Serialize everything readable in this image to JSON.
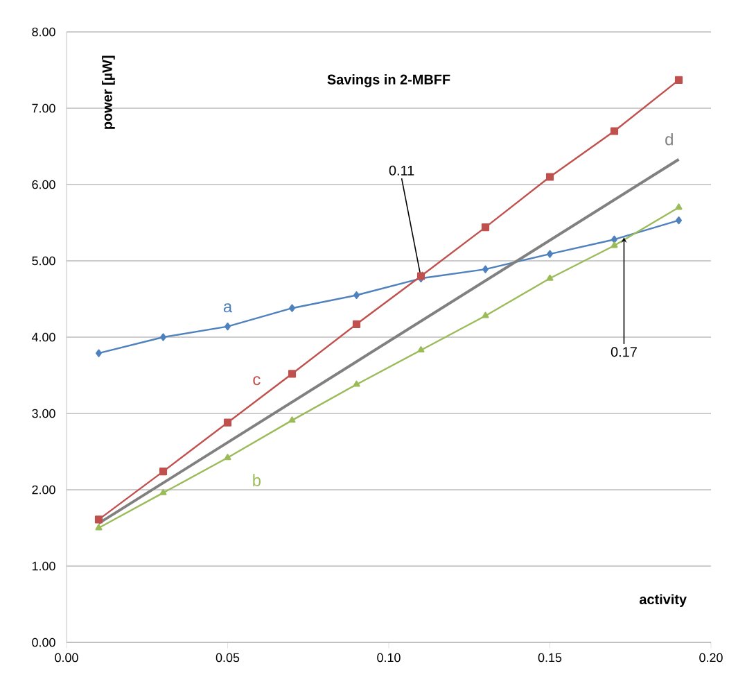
{
  "chart_data": {
    "type": "line",
    "title": "Savings in 2-MBFF",
    "xlabel": "activity",
    "ylabel": "power [µW]",
    "x": [
      0.01,
      0.03,
      0.05,
      0.07,
      0.09,
      0.11,
      0.13,
      0.15,
      0.17,
      0.19
    ],
    "series": [
      {
        "name": "a",
        "color": "#4f81bd",
        "marker": "diamond",
        "values": [
          3.79,
          4.0,
          4.14,
          4.38,
          4.55,
          4.77,
          4.89,
          5.09,
          5.28,
          5.53
        ]
      },
      {
        "name": "c",
        "color": "#c0504d",
        "marker": "square",
        "values": [
          1.61,
          2.24,
          2.88,
          3.52,
          4.17,
          4.8,
          5.44,
          6.1,
          6.7,
          7.37
        ]
      },
      {
        "name": "b",
        "color": "#9bbb59",
        "marker": "triangle",
        "values": [
          1.5,
          1.96,
          2.42,
          2.91,
          3.38,
          3.83,
          4.28,
          4.77,
          5.2,
          5.7
        ]
      },
      {
        "name": "d",
        "color": "#808080",
        "marker": "none",
        "x": [
          0.01,
          0.19
        ],
        "values": [
          1.56,
          6.33
        ]
      }
    ],
    "annotations": [
      {
        "text": "0.11",
        "x": 0.11,
        "y": 4.78
      },
      {
        "text": "0.17",
        "x": 0.173,
        "y": 5.31
      }
    ],
    "xlim": [
      0,
      0.2
    ],
    "ylim": [
      0,
      8
    ],
    "xticks": [
      {
        "value": 0,
        "label": "0.00"
      },
      {
        "value": 0.05,
        "label": "0.05"
      },
      {
        "value": 0.1,
        "label": "0.10"
      },
      {
        "value": 0.15,
        "label": "0.15"
      },
      {
        "value": 0.2,
        "label": "0.20"
      }
    ],
    "yticks": [
      {
        "value": 0,
        "label": "0.00"
      },
      {
        "value": 1,
        "label": "1.00"
      },
      {
        "value": 2,
        "label": "2.00"
      },
      {
        "value": 3,
        "label": "3.00"
      },
      {
        "value": 4,
        "label": "4.00"
      },
      {
        "value": 5,
        "label": "5.00"
      },
      {
        "value": 6,
        "label": "6.00"
      },
      {
        "value": 7,
        "label": "7.00"
      },
      {
        "value": 8,
        "label": "8.00"
      }
    ],
    "grid": "y",
    "line_style": "solid"
  }
}
